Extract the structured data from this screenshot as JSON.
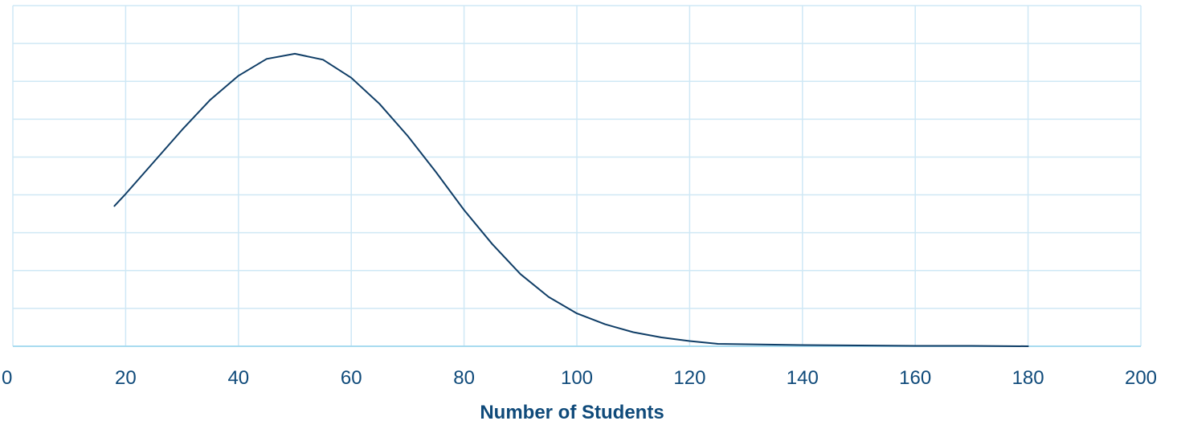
{
  "chart_data": {
    "type": "line",
    "title": "",
    "xlabel": "Number of Students",
    "ylabel": "",
    "xlim": [
      0,
      200
    ],
    "ylim": [
      0,
      8.5
    ],
    "x_ticks": [
      "0",
      "20",
      "40",
      "60",
      "80",
      "100",
      "120",
      "140",
      "160",
      "180",
      "200"
    ],
    "y_gridlines": 9,
    "grid": true,
    "legend": "none",
    "series": [
      {
        "x": [
          18,
          20,
          25,
          30,
          35,
          40,
          45,
          50,
          55,
          60,
          65,
          70,
          75,
          80,
          85,
          90,
          95,
          100,
          105,
          110,
          115,
          120,
          125,
          130,
          140,
          150,
          160,
          170,
          180
        ],
        "y": [
          3.5,
          3.8,
          4.6,
          5.4,
          6.15,
          6.75,
          7.17,
          7.3,
          7.15,
          6.7,
          6.05,
          5.25,
          4.35,
          3.4,
          2.55,
          1.8,
          1.23,
          0.82,
          0.55,
          0.35,
          0.22,
          0.13,
          0.06,
          0.05,
          0.03,
          0.02,
          0.01,
          0.01,
          0.0
        ]
      }
    ],
    "colors": {
      "line": "#0f3d66",
      "grid": "#cfe8f5",
      "axis": "#a8dbf0",
      "tick_text": "#0f4a7a",
      "title_text": "#0f4a7a"
    }
  }
}
